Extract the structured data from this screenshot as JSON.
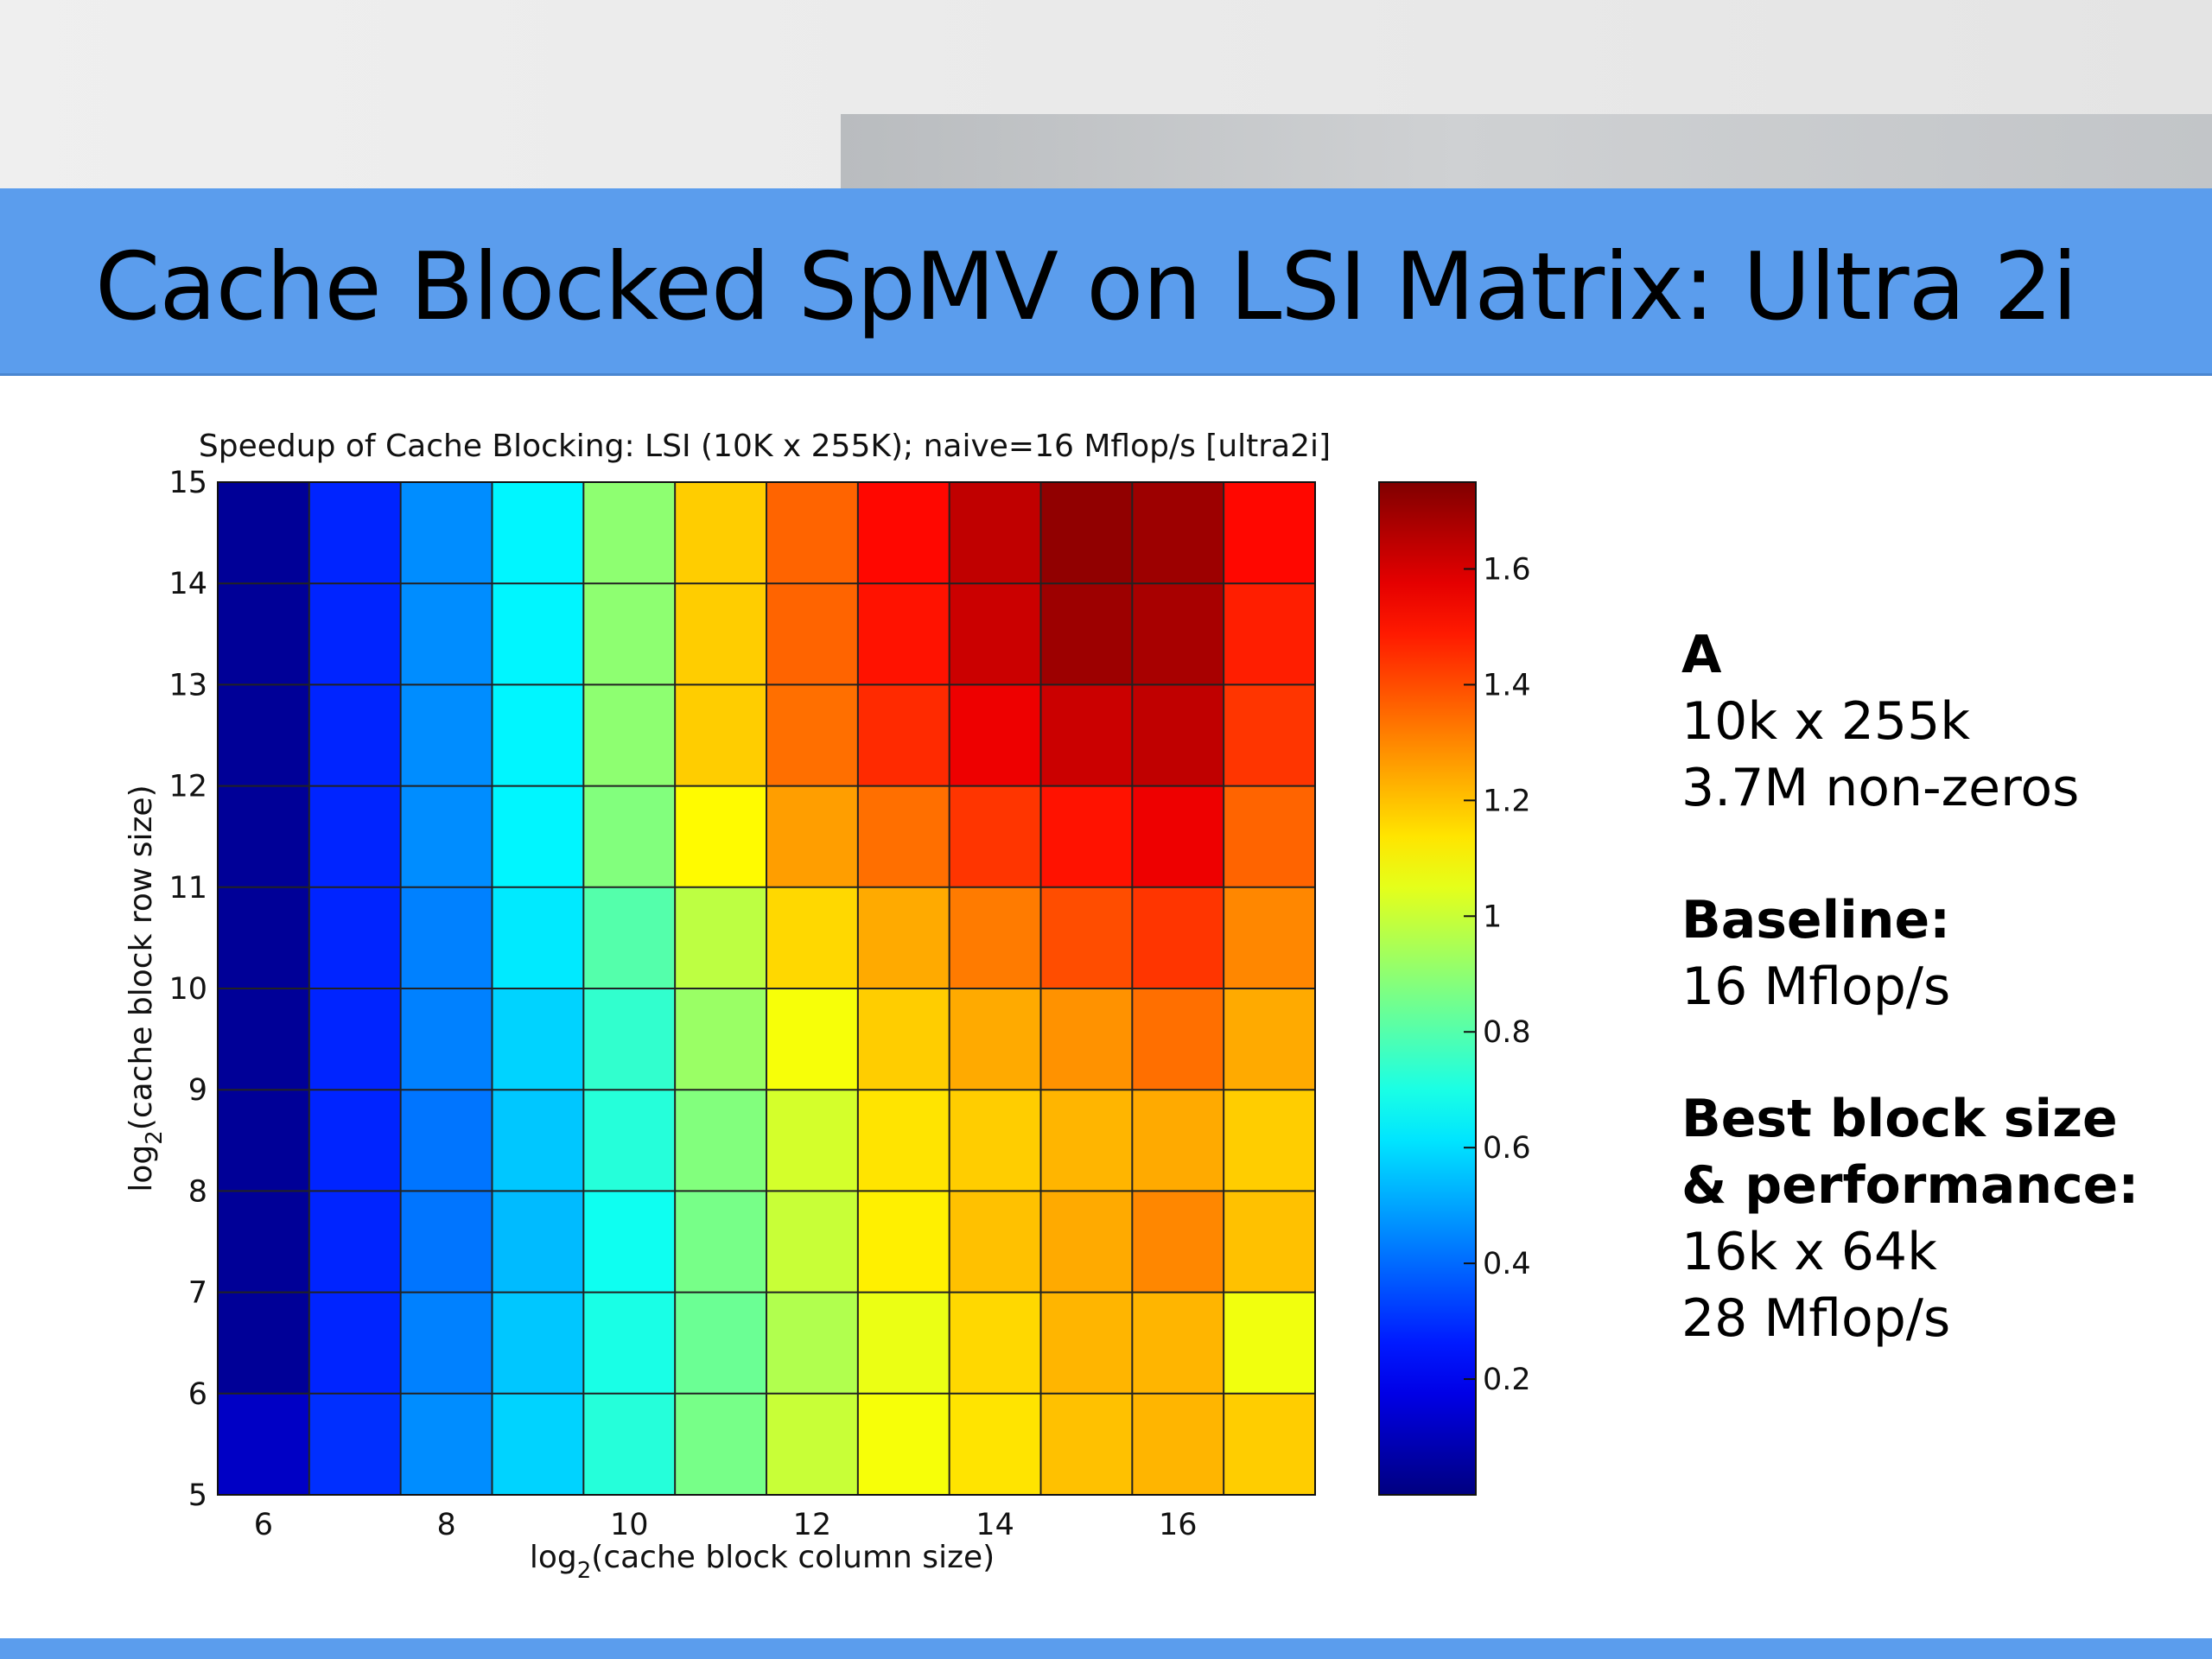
{
  "slide": {
    "title": "Cache Blocked SpMV on LSI Matrix: Ultra 2i"
  },
  "info_panel": {
    "matrix_name": "A",
    "matrix_dims": "10k x 255k",
    "nonzeros": "3.7M non-zeros",
    "baseline_heading": "Baseline:",
    "baseline_value": "16 Mflop/s",
    "best_heading_1": "Best block size",
    "best_heading_2": "& performance:",
    "best_size": "16k x 64k",
    "best_perf": "28 Mflop/s"
  },
  "colors": {
    "title_bar": "#5b9ded",
    "colormap": "jet"
  },
  "chart_data": {
    "type": "heatmap",
    "title": "Speedup of Cache Blocking: LSI (10K x 255K); naive=16 Mflop/s [ultra2i]",
    "xlabel_main": "log",
    "xlabel_sub": "2",
    "xlabel_rest": "(cache block column size)",
    "ylabel_main": "log",
    "ylabel_sub": "2",
    "ylabel_rest": "(cache block row size)",
    "x": [
      6,
      7,
      8,
      9,
      10,
      11,
      12,
      13,
      14,
      15,
      16,
      17
    ],
    "y": [
      5,
      6,
      7,
      8,
      9,
      10,
      11,
      12,
      13,
      14
    ],
    "xlim": [
      5.5,
      17.5
    ],
    "ylim": [
      5,
      15
    ],
    "xticks": [
      6,
      8,
      10,
      12,
      14,
      16
    ],
    "yticks": [
      5,
      6,
      7,
      8,
      9,
      10,
      11,
      12,
      13,
      14,
      15
    ],
    "values": [
      [
        0.12,
        0.3,
        0.46,
        0.58,
        0.72,
        0.86,
        1.0,
        1.08,
        1.14,
        1.2,
        1.22,
        1.18
      ],
      [
        0.04,
        0.28,
        0.44,
        0.56,
        0.7,
        0.84,
        0.96,
        1.06,
        1.16,
        1.22,
        1.22,
        1.07
      ],
      [
        0.04,
        0.28,
        0.42,
        0.54,
        0.68,
        0.86,
        1.0,
        1.12,
        1.2,
        1.24,
        1.3,
        1.2
      ],
      [
        0.04,
        0.28,
        0.42,
        0.56,
        0.72,
        0.88,
        1.02,
        1.14,
        1.18,
        1.22,
        1.24,
        1.18
      ],
      [
        0.04,
        0.28,
        0.44,
        0.58,
        0.74,
        0.92,
        1.08,
        1.18,
        1.24,
        1.28,
        1.34,
        1.24
      ],
      [
        0.04,
        0.28,
        0.44,
        0.62,
        0.8,
        0.98,
        1.16,
        1.24,
        1.32,
        1.4,
        1.44,
        1.3
      ],
      [
        0.04,
        0.28,
        0.46,
        0.64,
        0.88,
        1.1,
        1.26,
        1.34,
        1.44,
        1.5,
        1.56,
        1.36
      ],
      [
        0.04,
        0.28,
        0.46,
        0.64,
        0.9,
        1.18,
        1.34,
        1.46,
        1.56,
        1.62,
        1.64,
        1.44
      ],
      [
        0.04,
        0.28,
        0.46,
        0.64,
        0.9,
        1.18,
        1.36,
        1.5,
        1.62,
        1.7,
        1.68,
        1.48
      ],
      [
        0.04,
        0.28,
        0.46,
        0.64,
        0.9,
        1.18,
        1.36,
        1.52,
        1.64,
        1.72,
        1.7,
        1.52
      ]
    ],
    "colorbar": {
      "clim": [
        0,
        1.75
      ],
      "ticks": [
        0.2,
        0.4,
        0.6,
        0.8,
        1,
        1.2,
        1.4,
        1.6
      ],
      "tick_labels": [
        "0.2",
        "0.4",
        "0.6",
        "0.8",
        "1",
        "1.2",
        "1.4",
        "1.6"
      ]
    },
    "grid": true,
    "legend": "colorbar-right"
  }
}
